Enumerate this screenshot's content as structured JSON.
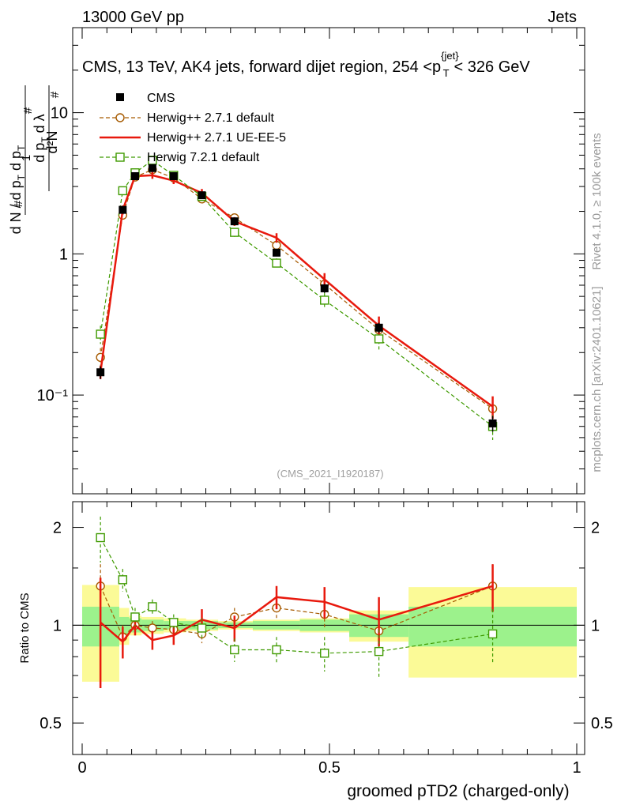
{
  "header": {
    "left": "13000 GeV pp",
    "right": "Jets"
  },
  "side_labels": {
    "rivet": "Rivet 4.1.0, ≥ 100k events",
    "mcplots": "mcplots.cern.ch [arXiv:2401.10621]"
  },
  "watermark": "(CMS_2021_I1920187)",
  "chart_data": {
    "type": "line",
    "title": "CMS, 13 TeV, AK4 jets, forward dijet region, 254 <p",
    "title_sup": "{jet}",
    "title_sub": "T",
    "title_end": "< 326 GeV",
    "xlabel": "groomed pTD2 (charged-only)",
    "ylabel_main": "1/N dN/dλ (d²N / dp_T dλ normalised)",
    "ylabel_ratio": "Ratio to CMS",
    "xlim": [
      0,
      1
    ],
    "ylim_main": [
      0.02,
      40
    ],
    "ylim_ratio": [
      0.4,
      2.4
    ],
    "x_ticks": [
      "0",
      "0.5",
      "1"
    ],
    "y_ticks_main": [
      "10⁻¹",
      "1",
      "10"
    ],
    "y_ticks_ratio": [
      "0.5",
      "1",
      "2"
    ],
    "x": [
      0.037,
      0.082,
      0.107,
      0.142,
      0.185,
      0.242,
      0.308,
      0.393,
      0.49,
      0.6,
      0.83
    ],
    "bin_edges": [
      0.0,
      0.075,
      0.095,
      0.12,
      0.165,
      0.21,
      0.275,
      0.345,
      0.44,
      0.54,
      0.66,
      1.0
    ],
    "cms": {
      "name": "CMS",
      "values": [
        0.145,
        2.05,
        3.55,
        4.05,
        3.55,
        2.6,
        1.7,
        1.02,
        0.57,
        0.3,
        0.063
      ],
      "errors": [
        0.015,
        0.12,
        0.15,
        0.18,
        0.15,
        0.12,
        0.08,
        0.06,
        0.04,
        0.025,
        0.008
      ]
    },
    "series": [
      {
        "name": "Herwig++ 2.7.1 default",
        "color": "#a65a00",
        "style": "dashed",
        "marker": "circle",
        "values": [
          0.185,
          1.88,
          3.5,
          3.95,
          3.45,
          2.45,
          1.8,
          1.15,
          0.61,
          0.29,
          0.08
        ],
        "errors": [
          0.03,
          0.15,
          0.2,
          0.2,
          0.18,
          0.15,
          0.12,
          0.09,
          0.06,
          0.04,
          0.015
        ],
        "ratio": [
          1.32,
          0.92,
          1.0,
          0.98,
          0.97,
          0.94,
          1.06,
          1.13,
          1.08,
          0.96,
          1.32
        ],
        "ratio_err": [
          0.22,
          0.08,
          0.06,
          0.05,
          0.05,
          0.06,
          0.07,
          0.08,
          0.1,
          0.13,
          0.22
        ]
      },
      {
        "name": "Herwig++ 2.7.1 UE-EE-5",
        "color": "#e8190d",
        "style": "solid",
        "marker": "none",
        "values": [
          0.145,
          2.05,
          3.55,
          3.6,
          3.3,
          2.7,
          1.7,
          1.3,
          0.66,
          0.31,
          0.083
        ],
        "errors": [
          0.015,
          0.15,
          0.2,
          0.2,
          0.18,
          0.18,
          0.12,
          0.1,
          0.07,
          0.05,
          0.015
        ],
        "ratio": [
          1.02,
          0.89,
          1.0,
          0.9,
          0.93,
          1.04,
          0.98,
          1.22,
          1.18,
          1.04,
          1.32
        ],
        "ratio_err": [
          0.38,
          0.1,
          0.07,
          0.06,
          0.06,
          0.08,
          0.09,
          0.1,
          0.13,
          0.18,
          0.22
        ]
      },
      {
        "name": "Herwig 7.2.1 default",
        "color": "#3f9a00",
        "style": "dashed",
        "marker": "square",
        "values": [
          0.27,
          2.8,
          3.75,
          4.6,
          3.6,
          2.55,
          1.42,
          0.86,
          0.47,
          0.25,
          0.06
        ],
        "errors": [
          0.04,
          0.2,
          0.2,
          0.25,
          0.2,
          0.15,
          0.1,
          0.07,
          0.06,
          0.04,
          0.012
        ],
        "ratio": [
          1.86,
          1.38,
          1.06,
          1.14,
          1.02,
          0.98,
          0.84,
          0.84,
          0.82,
          0.83,
          0.94
        ],
        "ratio_err": [
          0.3,
          0.11,
          0.07,
          0.06,
          0.06,
          0.07,
          0.07,
          0.08,
          0.1,
          0.14,
          0.18
        ]
      }
    ],
    "ratio_band": {
      "stat_half": [
        0.14,
        0.06,
        0.05,
        0.04,
        0.03,
        0.03,
        0.02,
        0.03,
        0.04,
        0.08,
        0.14
      ],
      "total_half": [
        0.33,
        0.13,
        0.07,
        0.06,
        0.05,
        0.04,
        0.03,
        0.04,
        0.05,
        0.11,
        0.31
      ]
    }
  }
}
